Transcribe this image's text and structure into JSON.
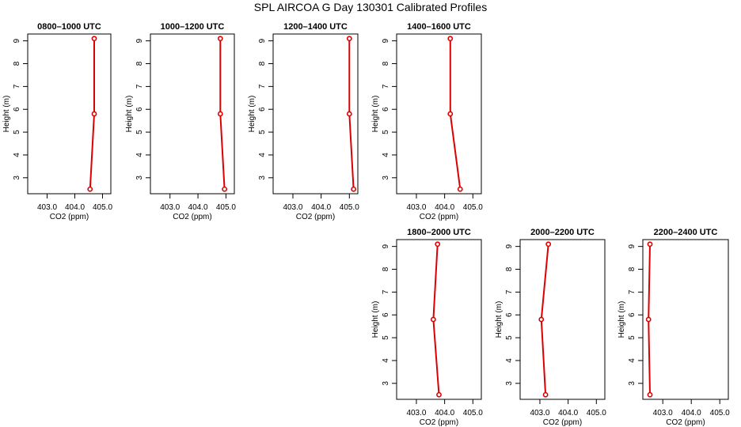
{
  "title": "SPL AIRCOA G  Day 130301  Calibrated Profiles",
  "chart_data": [
    {
      "type": "line",
      "title": "0800–1000 UTC",
      "xlabel": "CO2 (ppm)",
      "ylabel": "Height (m)",
      "xlim": [
        402.3,
        405.3
      ],
      "ylim": [
        2.3,
        9.3
      ],
      "xticks": [
        "403.0",
        "404.0",
        "405.0"
      ],
      "yticks": [
        "3",
        "4",
        "5",
        "6",
        "7",
        "8",
        "9"
      ],
      "x": [
        404.55,
        404.7,
        404.7
      ],
      "y": [
        2.5,
        5.8,
        9.1
      ],
      "color": "#dd0000",
      "grid": false
    },
    {
      "type": "line",
      "title": "1000–1200 UTC",
      "xlabel": "CO2 (ppm)",
      "ylabel": "Height (m)",
      "xlim": [
        402.3,
        405.3
      ],
      "ylim": [
        2.3,
        9.3
      ],
      "xticks": [
        "403.0",
        "404.0",
        "405.0"
      ],
      "yticks": [
        "3",
        "4",
        "5",
        "6",
        "7",
        "8",
        "9"
      ],
      "x": [
        404.95,
        404.8,
        404.8
      ],
      "y": [
        2.5,
        5.8,
        9.1
      ],
      "color": "#dd0000",
      "grid": false
    },
    {
      "type": "line",
      "title": "1200–1400 UTC",
      "xlabel": "CO2 (ppm)",
      "ylabel": "Height (m)",
      "xlim": [
        402.3,
        405.3
      ],
      "ylim": [
        2.3,
        9.3
      ],
      "xticks": [
        "403.0",
        "404.0",
        "405.0"
      ],
      "yticks": [
        "3",
        "4",
        "5",
        "6",
        "7",
        "8",
        "9"
      ],
      "x": [
        405.15,
        405.0,
        405.0
      ],
      "y": [
        2.5,
        5.8,
        9.1
      ],
      "color": "#dd0000",
      "grid": false
    },
    {
      "type": "line",
      "title": "1400–1600 UTC",
      "xlabel": "CO2 (ppm)",
      "ylabel": "Height (m)",
      "xlim": [
        402.3,
        405.3
      ],
      "ylim": [
        2.3,
        9.3
      ],
      "xticks": [
        "403.0",
        "404.0",
        "405.0"
      ],
      "yticks": [
        "3",
        "4",
        "5",
        "6",
        "7",
        "8",
        "9"
      ],
      "x": [
        404.55,
        404.2,
        404.2
      ],
      "y": [
        2.5,
        5.8,
        9.1
      ],
      "color": "#dd0000",
      "grid": false
    },
    {
      "type": "line",
      "title": "1800–2000 UTC",
      "xlabel": "CO2 (ppm)",
      "ylabel": "Height (m)",
      "xlim": [
        402.3,
        405.3
      ],
      "ylim": [
        2.3,
        9.3
      ],
      "xticks": [
        "403.0",
        "404.0",
        "405.0"
      ],
      "yticks": [
        "3",
        "4",
        "5",
        "6",
        "7",
        "8",
        "9"
      ],
      "x": [
        403.8,
        403.6,
        403.75
      ],
      "y": [
        2.5,
        5.8,
        9.1
      ],
      "color": "#dd0000",
      "grid": false
    },
    {
      "type": "line",
      "title": "2000–2200 UTC",
      "xlabel": "CO2 (ppm)",
      "ylabel": "Height (m)",
      "xlim": [
        402.3,
        405.3
      ],
      "ylim": [
        2.3,
        9.3
      ],
      "xticks": [
        "403.0",
        "404.0",
        "405.0"
      ],
      "yticks": [
        "3",
        "4",
        "5",
        "6",
        "7",
        "8",
        "9"
      ],
      "x": [
        403.2,
        403.05,
        403.3
      ],
      "y": [
        2.5,
        5.8,
        9.1
      ],
      "color": "#dd0000",
      "grid": false
    },
    {
      "type": "line",
      "title": "2200–2400 UTC",
      "xlabel": "CO2 (ppm)",
      "ylabel": "Height (m)",
      "xlim": [
        402.3,
        405.3
      ],
      "ylim": [
        2.3,
        9.3
      ],
      "xticks": [
        "403.0",
        "404.0",
        "405.0"
      ],
      "yticks": [
        "3",
        "4",
        "5",
        "6",
        "7",
        "8",
        "9"
      ],
      "x": [
        402.55,
        402.5,
        402.55
      ],
      "y": [
        2.5,
        5.8,
        9.1
      ],
      "color": "#dd0000",
      "grid": false
    }
  ]
}
